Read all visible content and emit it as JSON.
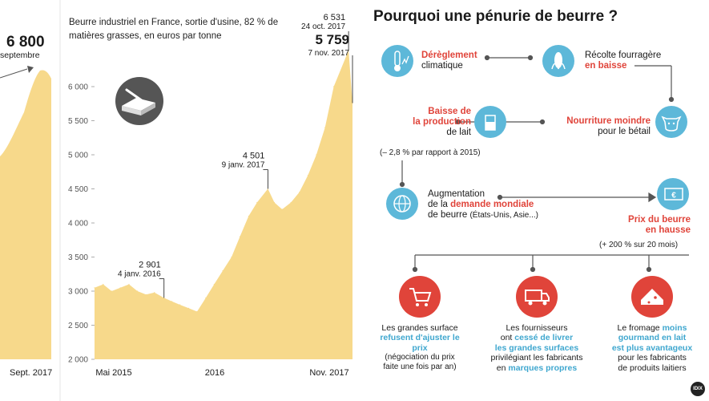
{
  "chart_data": [
    {
      "type": "line",
      "title": "",
      "x_ticks": [
        "Sept. 2017"
      ],
      "annotations": [
        {
          "value": "6 800",
          "label": "septembre"
        }
      ]
    },
    {
      "type": "area",
      "title": "Beurre industriel en France, sortie d'usine, 82 % de matières grasses, en euros par tonne",
      "xlabel": "",
      "ylabel": "",
      "ylim": [
        2000,
        6800
      ],
      "y_ticks": [
        "2 000",
        "2 500",
        "3 000",
        "3 500",
        "4 000",
        "4 500",
        "5 000",
        "5 500",
        "6 000"
      ],
      "x_ticks": [
        "Mai 2015",
        "2016",
        "Nov. 2017"
      ],
      "color": "#f7d98b",
      "series": [
        {
          "values": [
            {
              "date": "2015-05-01",
              "y": 3050
            },
            {
              "date": "2015-06-01",
              "y": 3100
            },
            {
              "date": "2015-07-01",
              "y": 3000
            },
            {
              "date": "2015-08-01",
              "y": 3050
            },
            {
              "date": "2015-09-01",
              "y": 3100
            },
            {
              "date": "2015-10-01",
              "y": 3000
            },
            {
              "date": "2015-11-01",
              "y": 2950
            },
            {
              "date": "2015-12-01",
              "y": 2980
            },
            {
              "date": "2016-01-04",
              "y": 2901
            },
            {
              "date": "2016-02-01",
              "y": 2850
            },
            {
              "date": "2016-03-01",
              "y": 2800
            },
            {
              "date": "2016-04-01",
              "y": 2750
            },
            {
              "date": "2016-05-01",
              "y": 2700
            },
            {
              "date": "2016-06-01",
              "y": 2900
            },
            {
              "date": "2016-07-01",
              "y": 3100
            },
            {
              "date": "2016-08-01",
              "y": 3300
            },
            {
              "date": "2016-09-01",
              "y": 3500
            },
            {
              "date": "2016-10-01",
              "y": 3800
            },
            {
              "date": "2016-11-01",
              "y": 4100
            },
            {
              "date": "2016-12-01",
              "y": 4300
            },
            {
              "date": "2017-01-09",
              "y": 4501
            },
            {
              "date": "2017-02-01",
              "y": 4300
            },
            {
              "date": "2017-03-01",
              "y": 4200
            },
            {
              "date": "2017-04-01",
              "y": 4300
            },
            {
              "date": "2017-05-01",
              "y": 4450
            },
            {
              "date": "2017-06-01",
              "y": 4700
            },
            {
              "date": "2017-07-01",
              "y": 5000
            },
            {
              "date": "2017-08-01",
              "y": 5400
            },
            {
              "date": "2017-09-01",
              "y": 6000
            },
            {
              "date": "2017-10-24",
              "y": 6531
            },
            {
              "date": "2017-11-07",
              "y": 5759
            }
          ]
        }
      ],
      "annotations": [
        {
          "value": "2 901",
          "label": "4 janv. 2016",
          "date": "2016-01-04",
          "y": 2901
        },
        {
          "value": "4 501",
          "label": "9 janv. 2017",
          "date": "2017-01-09",
          "y": 4501
        },
        {
          "value": "6 531",
          "label": "24 oct. 2017",
          "date": "2017-10-24",
          "y": 6531
        },
        {
          "value": "5 759",
          "label": "7 nov. 2017",
          "date": "2017-11-07",
          "y": 5759
        }
      ]
    }
  ],
  "infographic": {
    "title": "Pourquoi une pénurie de beurre ?",
    "nodes": {
      "climat": {
        "line1": "Dérèglement",
        "line2": "climatique",
        "icon": "thermometer-icon"
      },
      "recolte": {
        "line1": "Récolte fourragère",
        "line2": "en baisse",
        "icon": "corn-icon"
      },
      "nourriture": {
        "line1": "Nourriture moindre",
        "line2": "pour le bétail",
        "icon": "cow-icon"
      },
      "lait": {
        "line1": "Baisse de",
        "line2": "la production",
        "line3": "de lait",
        "note": "(– 2,8 % par rapport à 2015)",
        "icon": "milk-icon"
      },
      "demande": {
        "line1": "Augmentation",
        "line2a": "de la ",
        "line2b": "demande mondiale",
        "line3": "de beurre",
        "line3b": "(États-Unis, Asie...)",
        "icon": "globe-icon"
      },
      "prix": {
        "line1": "Prix du beurre",
        "line2": "en hausse",
        "note": "(+ 200 % sur 20 mois)",
        "icon": "euro-note-icon"
      }
    },
    "bottom": {
      "grandes": {
        "l1": "Les grandes surface",
        "l2a": "refusent d'ajuster le prix",
        "l3": "(négociation du prix",
        "l4": "faite une fois par an)",
        "icon": "cart-icon"
      },
      "fournisseurs": {
        "l1": "Les fournisseurs",
        "l2a": "ont ",
        "l2b": "cessé de livrer",
        "l3": "les grandes surfaces",
        "l4": "privilégiant les fabricants",
        "l5a": "en ",
        "l5b": "marques propres",
        "icon": "truck-icon"
      },
      "fromage": {
        "l1a": "Le fromage ",
        "l1b": "moins",
        "l2": "gourmand en lait",
        "l3": "est plus avantageux",
        "l4": "pour les fabricants",
        "l5": "de produits laitiers",
        "icon": "cheese-icon"
      }
    },
    "logo": "IDIX"
  }
}
